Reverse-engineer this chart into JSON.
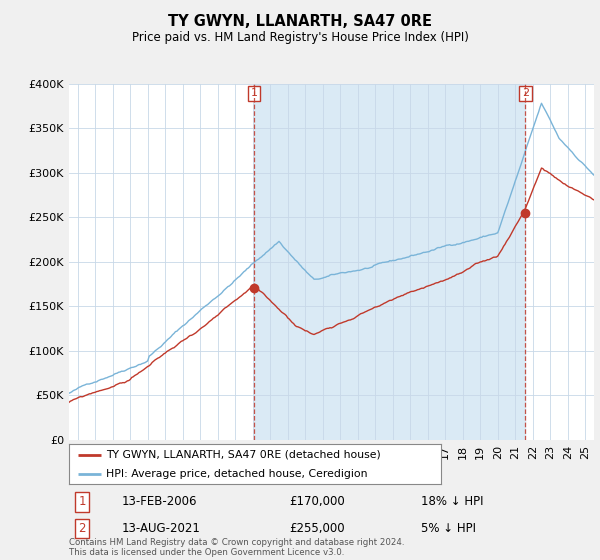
{
  "title": "TY GWYN, LLANARTH, SA47 0RE",
  "subtitle": "Price paid vs. HM Land Registry's House Price Index (HPI)",
  "legend_line1": "TY GWYN, LLANARTH, SA47 0RE (detached house)",
  "legend_line2": "HPI: Average price, detached house, Ceredigion",
  "transaction1_date": "13-FEB-2006",
  "transaction1_price": 170000,
  "transaction1_label": "18% ↓ HPI",
  "transaction2_date": "13-AUG-2021",
  "transaction2_price": 255000,
  "transaction2_label": "5% ↓ HPI",
  "footer": "Contains HM Land Registry data © Crown copyright and database right 2024.\nThis data is licensed under the Open Government Licence v3.0.",
  "ylim": [
    0,
    400000
  ],
  "yticks": [
    0,
    50000,
    100000,
    150000,
    200000,
    250000,
    300000,
    350000,
    400000
  ],
  "hpi_color": "#7ab4d8",
  "price_color": "#c0392b",
  "vline_color": "#c0392b",
  "background_color": "#f0f0f0",
  "plot_bg_color": "#ffffff",
  "fill_color": "#daeaf5",
  "t1_year": 2006.083,
  "t2_year": 2021.583,
  "xmin": 1995.5,
  "xmax": 2025.5
}
